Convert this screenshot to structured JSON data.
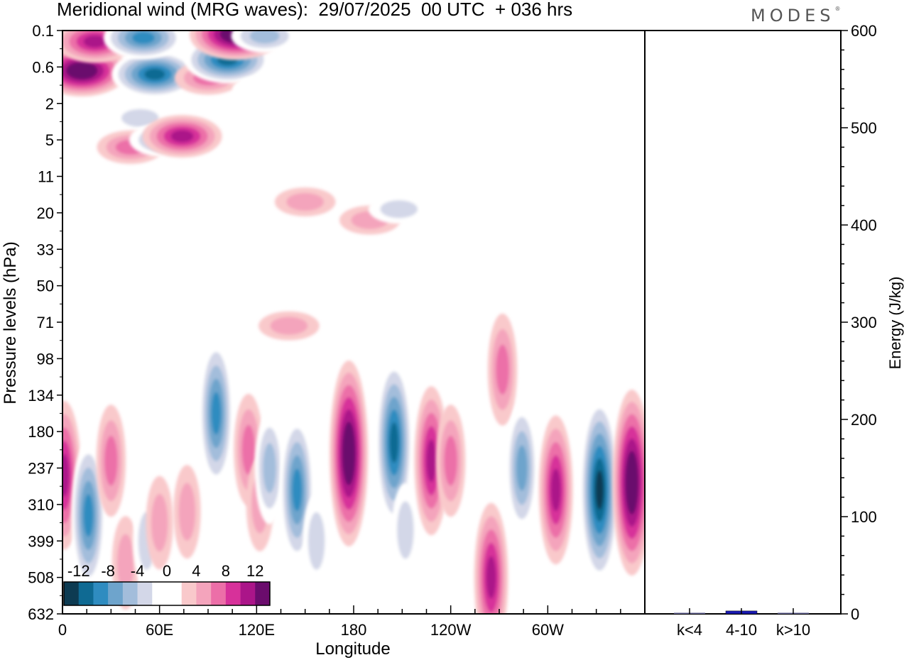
{
  "header": {
    "title": "Meridional wind (MRG waves):  29/07/2025  00 UTC  + 036 hrs",
    "brand": "MODES",
    "brand_mark": "®"
  },
  "chart_data": [
    {
      "type": "heatmap",
      "title": "Meridional wind (MRG waves)",
      "xlabel": "Longitude",
      "ylabel": "Pressure levels (hPa)",
      "x_ticks": [
        "0",
        "60E",
        "120E",
        "180",
        "120W",
        "60W"
      ],
      "x_tick_degrees": [
        0,
        60,
        120,
        180,
        240,
        300
      ],
      "x_range": [
        0,
        360
      ],
      "y_ticks": [
        "0.1",
        "0.6",
        "2",
        "5",
        "11",
        "20",
        "33",
        "50",
        "71",
        "98",
        "134",
        "180",
        "237",
        "310",
        "399",
        "508",
        "632"
      ],
      "colorbar": {
        "labels": [
          "-12",
          "-8",
          "-4",
          "0",
          "4",
          "8",
          "12"
        ],
        "label_values": [
          -12,
          -8,
          -4,
          0,
          4,
          8,
          12
        ],
        "levels": [
          -14,
          -12,
          -10,
          -8,
          -6,
          -4,
          -2,
          2,
          4,
          6,
          8,
          10,
          12,
          14
        ],
        "colors": [
          "#0d3b52",
          "#0f6a93",
          "#2f8cc0",
          "#6ea4cc",
          "#a3bddb",
          "#d3d7e8",
          "#ffffff",
          "#ffffff",
          "#f9c9cb",
          "#f4a4bc",
          "#ec6fa8",
          "#d7319a",
          "#ab1589",
          "#6b0c6d"
        ]
      },
      "features": [
        {
          "lon": 12,
          "level": 1.1,
          "value": 14
        },
        {
          "lon": 20,
          "level": 0.3,
          "value": 10
        },
        {
          "lon": 48,
          "level": 2.4,
          "value": -4
        },
        {
          "lon": 42,
          "level": 3.2,
          "value": 6
        },
        {
          "lon": 57,
          "level": 1.2,
          "value": -12
        },
        {
          "lon": 62,
          "level": 3,
          "value": -6
        },
        {
          "lon": 50,
          "level": 0.2,
          "value": -10
        },
        {
          "lon": 90,
          "level": 1.3,
          "value": 6
        },
        {
          "lon": 74,
          "level": 2.9,
          "value": 10
        },
        {
          "lon": 102,
          "level": 0.8,
          "value": -12
        },
        {
          "lon": 107,
          "level": 0.1,
          "value": 14
        },
        {
          "lon": 122,
          "level": 1.6,
          "value": -2
        },
        {
          "lon": 125,
          "level": 0.15,
          "value": -6
        },
        {
          "lon": 150,
          "level": 4.7,
          "value": 4
        },
        {
          "lon": 145,
          "level": 6.5,
          "value": -2
        },
        {
          "lon": 140,
          "level": 8.1,
          "value": 4
        },
        {
          "lon": 190,
          "level": 5.2,
          "value": 4
        },
        {
          "lon": 208,
          "level": 4.9,
          "value": -4
        },
        {
          "lon": 1,
          "level": 12.2,
          "value": 10
        },
        {
          "lon": 16,
          "level": 13.3,
          "value": -10
        },
        {
          "lon": 30,
          "level": 11.8,
          "value": 6
        },
        {
          "lon": 39,
          "level": 14.6,
          "value": 4
        },
        {
          "lon": 52,
          "level": 14,
          "value": -4
        },
        {
          "lon": 60,
          "level": 13.5,
          "value": 4
        },
        {
          "lon": 77,
          "level": 13.2,
          "value": 4
        },
        {
          "lon": 95,
          "level": 10.5,
          "value": -10
        },
        {
          "lon": 115,
          "level": 11.5,
          "value": 6
        },
        {
          "lon": 122,
          "level": 13,
          "value": 4
        },
        {
          "lon": 128,
          "level": 12,
          "value": -6
        },
        {
          "lon": 145,
          "level": 12.6,
          "value": -10
        },
        {
          "lon": 157,
          "level": 14,
          "value": -4
        },
        {
          "lon": 177,
          "level": 11.6,
          "value": 14
        },
        {
          "lon": 205,
          "level": 11.3,
          "value": -12
        },
        {
          "lon": 212,
          "level": 13.7,
          "value": -4
        },
        {
          "lon": 228,
          "level": 11.8,
          "value": 10
        },
        {
          "lon": 240,
          "level": 11.8,
          "value": 6
        },
        {
          "lon": 265,
          "level": 15,
          "value": 10
        },
        {
          "lon": 272,
          "level": 9.3,
          "value": 6
        },
        {
          "lon": 284,
          "level": 12,
          "value": -8
        },
        {
          "lon": 305,
          "level": 12.6,
          "value": 10
        },
        {
          "lon": 332,
          "level": 12.6,
          "value": -14
        },
        {
          "lon": 352,
          "level": 12.4,
          "value": 14
        },
        {
          "lon": 320,
          "level": 9.6,
          "value": -2
        }
      ]
    },
    {
      "type": "bar",
      "ylabel": "Energy (J/kg)",
      "categories": [
        "k<4",
        "4-10",
        "k>10"
      ],
      "values": [
        0.6,
        3,
        0.5
      ],
      "ylim": [
        0,
        600
      ],
      "y_ticks": [
        "0",
        "100",
        "200",
        "300",
        "400",
        "500",
        "600"
      ],
      "y_tick_values": [
        0,
        100,
        200,
        300,
        400,
        500,
        600
      ],
      "bar_color": "#1a1ab4"
    }
  ]
}
